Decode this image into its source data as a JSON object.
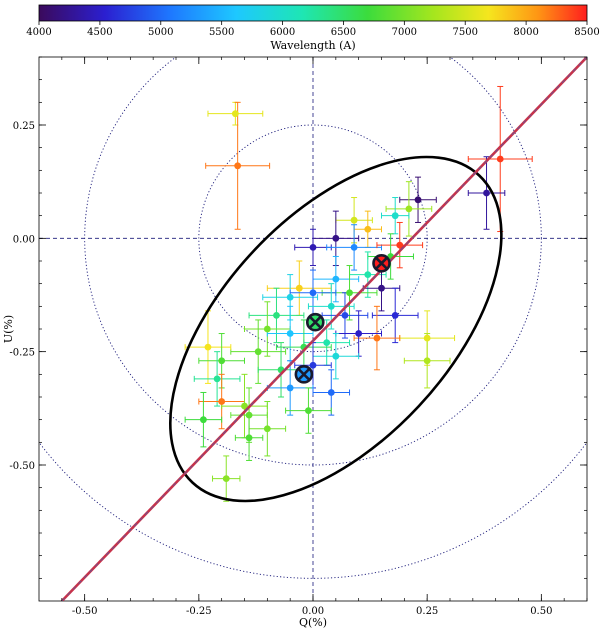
{
  "chart_data": {
    "type": "scatter",
    "title": "",
    "xlabel": "Q(%)",
    "ylabel": "U(%)",
    "xlim": [
      -0.6,
      0.6
    ],
    "ylim": [
      -0.8,
      0.4
    ],
    "xticks": [
      -0.5,
      -0.25,
      0.0,
      0.25,
      0.5
    ],
    "xtick_labels": [
      "-0.50",
      "-0.25",
      "0.00",
      "0.25",
      "0.50"
    ],
    "yticks": [
      -0.5,
      -0.25,
      0.0,
      0.25
    ],
    "ytick_labels": [
      "-0.50",
      "-0.25",
      "0.00",
      "0.25"
    ],
    "colorbar": {
      "label": "Wavelength (A)",
      "min": 4000,
      "max": 8500,
      "ticks": [
        4000,
        4500,
        5000,
        5500,
        6000,
        6500,
        7000,
        7500,
        8000,
        8500
      ],
      "tick_labels": [
        "4000",
        "4500",
        "5000",
        "5500",
        "6000",
        "6500",
        "7000",
        "7500",
        "8000",
        "8500"
      ]
    },
    "reference_circles": {
      "center": [
        0.0,
        0.0
      ],
      "radii": [
        0.25,
        0.5,
        0.75
      ]
    },
    "ellipse": {
      "center": [
        0.05,
        -0.2
      ],
      "semi_major": 0.46,
      "semi_minor": 0.25,
      "angle_deg": 47,
      "color": "#000000"
    },
    "fit_line": {
      "points": [
        [
          -0.55,
          -0.8
        ],
        [
          0.6,
          0.4
        ]
      ],
      "color": "#c8324a"
    },
    "crossed_markers": [
      {
        "x": 0.15,
        "y": -0.055,
        "wavelength": 8500
      },
      {
        "x": 0.005,
        "y": -0.185,
        "wavelength": 6500
      },
      {
        "x": -0.02,
        "y": -0.3,
        "wavelength": 5300
      }
    ],
    "points": [
      {
        "x": -0.17,
        "y": 0.275,
        "ex": 0.06,
        "ey": 0.025,
        "w": 7600
      },
      {
        "x": -0.165,
        "y": 0.16,
        "ex": 0.07,
        "ey": 0.14,
        "w": 8200
      },
      {
        "x": 0.41,
        "y": 0.175,
        "ex": 0.07,
        "ey": 0.16,
        "w": 8400
      },
      {
        "x": 0.38,
        "y": 0.1,
        "ex": 0.04,
        "ey": 0.08,
        "w": 4300
      },
      {
        "x": 0.23,
        "y": 0.085,
        "ex": 0.04,
        "ey": 0.05,
        "w": 4100
      },
      {
        "x": 0.21,
        "y": 0.065,
        "ex": 0.05,
        "ey": 0.06,
        "w": 7200
      },
      {
        "x": 0.18,
        "y": 0.05,
        "ex": 0.03,
        "ey": 0.04,
        "w": 6000
      },
      {
        "x": 0.09,
        "y": 0.04,
        "ex": 0.04,
        "ey": 0.05,
        "w": 7500
      },
      {
        "x": 0.12,
        "y": 0.02,
        "ex": 0.03,
        "ey": 0.04,
        "w": 7900
      },
      {
        "x": 0.05,
        "y": 0.0,
        "ex": 0.05,
        "ey": 0.06,
        "w": 4200
      },
      {
        "x": 0.0,
        "y": -0.02,
        "ex": 0.04,
        "ey": 0.04,
        "w": 4400
      },
      {
        "x": 0.09,
        "y": -0.02,
        "ex": 0.06,
        "ey": 0.05,
        "w": 5200
      },
      {
        "x": 0.19,
        "y": -0.015,
        "ex": 0.05,
        "ey": 0.05,
        "w": 8400
      },
      {
        "x": 0.17,
        "y": -0.04,
        "ex": 0.05,
        "ey": 0.05,
        "w": 6700
      },
      {
        "x": 0.12,
        "y": -0.08,
        "ex": 0.04,
        "ey": 0.05,
        "w": 6200
      },
      {
        "x": 0.05,
        "y": -0.09,
        "ex": 0.05,
        "ey": 0.05,
        "w": 5500
      },
      {
        "x": 0.15,
        "y": -0.11,
        "ex": 0.04,
        "ey": 0.05,
        "w": 4200
      },
      {
        "x": 0.08,
        "y": -0.12,
        "ex": 0.06,
        "ey": 0.06,
        "w": 6800
      },
      {
        "x": -0.03,
        "y": -0.11,
        "ex": 0.07,
        "ey": 0.06,
        "w": 7800
      },
      {
        "x": -0.05,
        "y": -0.13,
        "ex": 0.06,
        "ey": 0.05,
        "w": 5800
      },
      {
        "x": 0.0,
        "y": -0.12,
        "ex": 0.05,
        "ey": 0.05,
        "w": 5000
      },
      {
        "x": 0.04,
        "y": -0.15,
        "ex": 0.05,
        "ey": 0.05,
        "w": 6000
      },
      {
        "x": -0.08,
        "y": -0.17,
        "ex": 0.06,
        "ey": 0.06,
        "w": 6400
      },
      {
        "x": -0.1,
        "y": -0.2,
        "ex": 0.05,
        "ey": 0.06,
        "w": 7000
      },
      {
        "x": 0.07,
        "y": -0.17,
        "ex": 0.05,
        "ey": 0.05,
        "w": 4800
      },
      {
        "x": 0.18,
        "y": -0.17,
        "ex": 0.05,
        "ey": 0.06,
        "w": 4600
      },
      {
        "x": 0.25,
        "y": -0.22,
        "ex": 0.06,
        "ey": 0.06,
        "w": 7600
      },
      {
        "x": 0.14,
        "y": -0.22,
        "ex": 0.05,
        "ey": 0.07,
        "w": 8200
      },
      {
        "x": 0.1,
        "y": -0.21,
        "ex": 0.05,
        "ey": 0.05,
        "w": 4500
      },
      {
        "x": -0.05,
        "y": -0.21,
        "ex": 0.05,
        "ey": 0.06,
        "w": 5600
      },
      {
        "x": 0.03,
        "y": -0.23,
        "ex": 0.05,
        "ey": 0.05,
        "w": 6200
      },
      {
        "x": -0.02,
        "y": -0.24,
        "ex": 0.06,
        "ey": 0.06,
        "w": 6600
      },
      {
        "x": 0.05,
        "y": -0.26,
        "ex": 0.05,
        "ey": 0.05,
        "w": 5900
      },
      {
        "x": -0.12,
        "y": -0.25,
        "ex": 0.06,
        "ey": 0.07,
        "w": 6900
      },
      {
        "x": -0.23,
        "y": -0.24,
        "ex": 0.05,
        "ey": 0.08,
        "w": 7700
      },
      {
        "x": -0.2,
        "y": -0.27,
        "ex": 0.05,
        "ey": 0.06,
        "w": 6800
      },
      {
        "x": 0.0,
        "y": -0.28,
        "ex": 0.04,
        "ey": 0.05,
        "w": 4700
      },
      {
        "x": 0.25,
        "y": -0.27,
        "ex": 0.05,
        "ey": 0.06,
        "w": 7300
      },
      {
        "x": -0.07,
        "y": -0.29,
        "ex": 0.05,
        "ey": 0.06,
        "w": 6500
      },
      {
        "x": -0.21,
        "y": -0.31,
        "ex": 0.05,
        "ey": 0.06,
        "w": 6300
      },
      {
        "x": -0.05,
        "y": -0.33,
        "ex": 0.05,
        "ey": 0.06,
        "w": 5300
      },
      {
        "x": 0.04,
        "y": -0.34,
        "ex": 0.04,
        "ey": 0.05,
        "w": 5000
      },
      {
        "x": -0.2,
        "y": -0.36,
        "ex": 0.05,
        "ey": 0.06,
        "w": 8200
      },
      {
        "x": -0.15,
        "y": -0.37,
        "ex": 0.05,
        "ey": 0.07,
        "w": 7100
      },
      {
        "x": -0.01,
        "y": -0.38,
        "ex": 0.05,
        "ey": 0.05,
        "w": 6800
      },
      {
        "x": -0.24,
        "y": -0.4,
        "ex": 0.04,
        "ey": 0.06,
        "w": 6700
      },
      {
        "x": -0.14,
        "y": -0.39,
        "ex": 0.04,
        "ey": 0.06,
        "w": 6900
      },
      {
        "x": -0.1,
        "y": -0.42,
        "ex": 0.04,
        "ey": 0.06,
        "w": 7000
      },
      {
        "x": -0.14,
        "y": -0.44,
        "ex": 0.03,
        "ey": 0.05,
        "w": 6800
      },
      {
        "x": -0.19,
        "y": -0.53,
        "ex": 0.03,
        "ey": 0.05,
        "w": 7100
      }
    ]
  }
}
